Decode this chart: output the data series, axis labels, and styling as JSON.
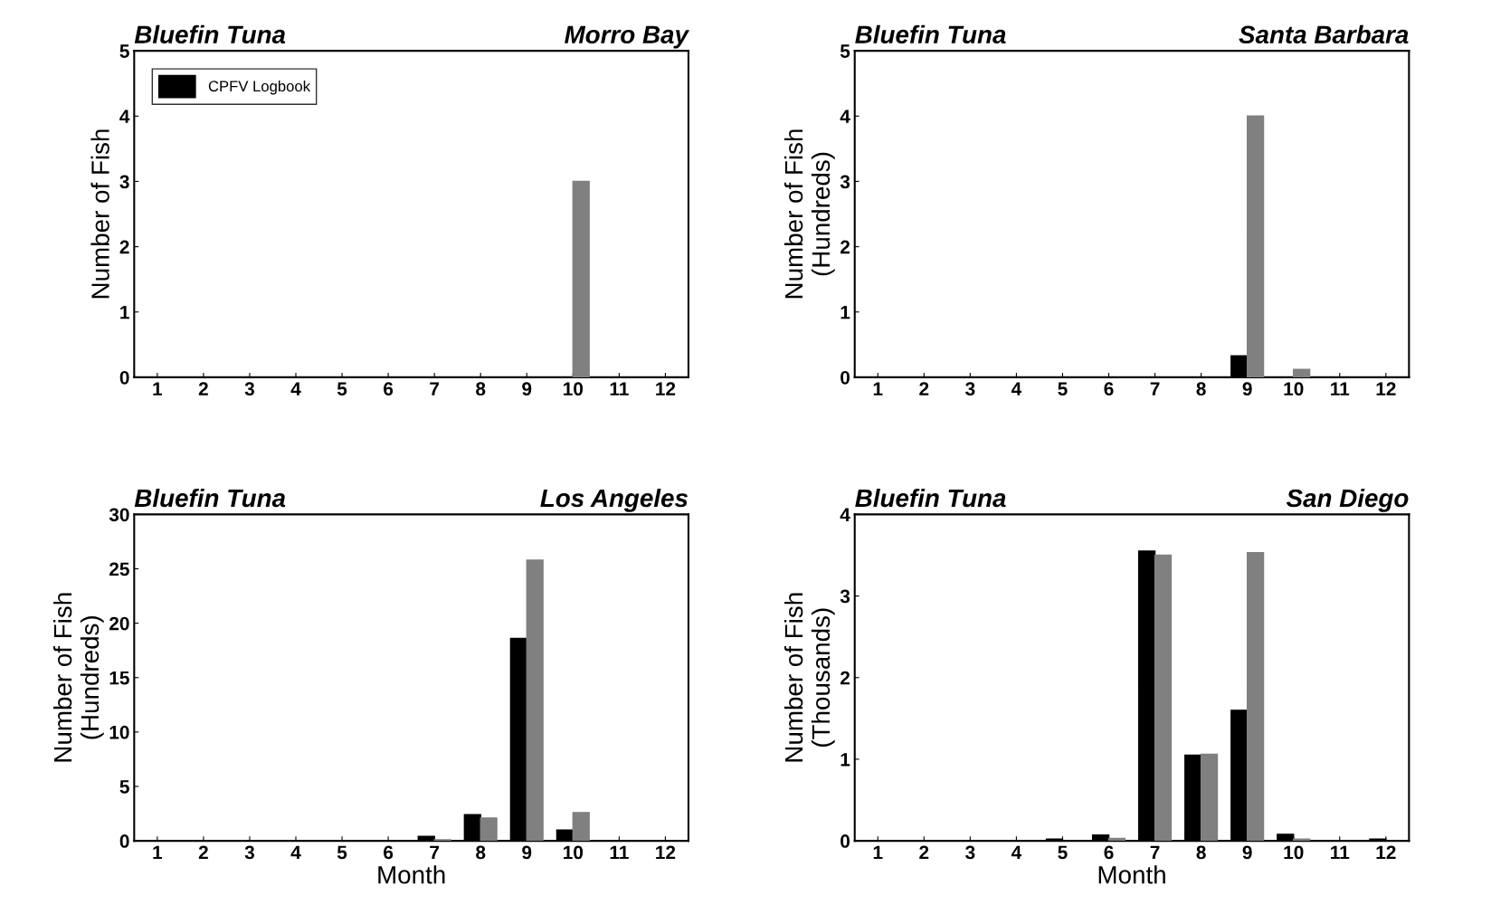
{
  "chart_data": [
    {
      "type": "bar",
      "title": "Bluefin Tuna",
      "subtitle": "Morro Bay",
      "ylabel": "Number of Fish",
      "categories": [
        "1",
        "2",
        "3",
        "4",
        "5",
        "6",
        "7",
        "8",
        "9",
        "10",
        "11",
        "12"
      ],
      "ylim": [
        0,
        5
      ],
      "yticks": [
        0,
        1,
        2,
        3,
        4,
        5
      ],
      "legend": "top left",
      "grid": false,
      "series": [
        {
          "name": "CPFV Logbook",
          "color": "#000000",
          "values": [
            0,
            0,
            0,
            0,
            0,
            0,
            0,
            0,
            0,
            0,
            0,
            0
          ]
        },
        {
          "color": "#808080",
          "values": [
            0,
            0,
            0,
            0,
            0,
            0,
            0,
            0,
            0,
            3,
            0,
            0
          ]
        }
      ]
    },
    {
      "type": "bar",
      "title": "Bluefin Tuna",
      "subtitle": "Santa Barbara",
      "ylabel": "Number of Fish\n(Hundreds)",
      "categories": [
        "1",
        "2",
        "3",
        "4",
        "5",
        "6",
        "7",
        "8",
        "9",
        "10",
        "11",
        "12"
      ],
      "ylim": [
        0,
        5
      ],
      "yticks": [
        0,
        1,
        2,
        3,
        4,
        5
      ],
      "grid": false,
      "series": [
        {
          "color": "#000000",
          "values": [
            0,
            0,
            0,
            0,
            0,
            0,
            0,
            0,
            0.33,
            0,
            0,
            0
          ]
        },
        {
          "color": "#808080",
          "values": [
            0,
            0,
            0,
            0,
            0,
            0,
            0,
            0,
            4.0,
            0.12,
            0,
            0
          ]
        }
      ]
    },
    {
      "type": "bar",
      "title": "Bluefin Tuna",
      "subtitle": "Los Angeles",
      "xlabel": "Month",
      "ylabel": "Number of Fish\n(Hundreds)",
      "categories": [
        "1",
        "2",
        "3",
        "4",
        "5",
        "6",
        "7",
        "8",
        "9",
        "10",
        "11",
        "12"
      ],
      "ylim": [
        0,
        30
      ],
      "yticks": [
        0,
        5,
        10,
        15,
        20,
        25,
        30
      ],
      "grid": false,
      "series": [
        {
          "color": "#000000",
          "values": [
            0,
            0,
            0,
            0,
            0,
            0,
            0.4,
            2.4,
            18.6,
            1.0,
            0,
            0
          ]
        },
        {
          "color": "#808080",
          "values": [
            0,
            0,
            0,
            0,
            0,
            0,
            0.1,
            2.1,
            25.8,
            2.6,
            0,
            0
          ]
        }
      ]
    },
    {
      "type": "bar",
      "title": "Bluefin Tuna",
      "subtitle": "San Diego",
      "xlabel": "Month",
      "ylabel": "Number of Fish\n(Thousands)",
      "categories": [
        "1",
        "2",
        "3",
        "4",
        "5",
        "6",
        "7",
        "8",
        "9",
        "10",
        "11",
        "12"
      ],
      "ylim": [
        0,
        4
      ],
      "yticks": [
        0,
        1,
        2,
        3,
        4
      ],
      "grid": false,
      "series": [
        {
          "color": "#000000",
          "values": [
            0,
            0,
            0,
            0,
            0.02,
            0.07,
            3.55,
            1.05,
            1.6,
            0.08,
            0,
            0.02
          ]
        },
        {
          "color": "#808080",
          "values": [
            0,
            0,
            0,
            0,
            0,
            0.03,
            3.5,
            1.06,
            3.53,
            0.02,
            0,
            0
          ]
        }
      ]
    }
  ]
}
